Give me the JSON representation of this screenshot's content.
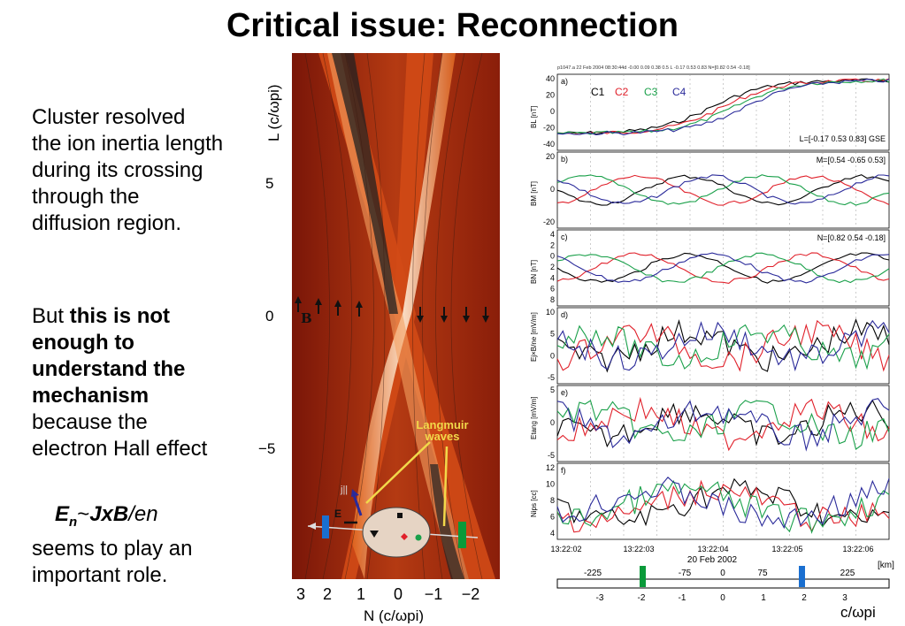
{
  "title": "Critical issue: Reconnection",
  "left_text": {
    "para1": [
      "Cluster resolved",
      "the ion inertia length",
      "during its crossing",
      "through the",
      "diffusion region."
    ],
    "para2_intro": "But ",
    "para2_bold": [
      "this is not",
      "enough to",
      "understand the",
      "mechanism"
    ],
    "para2_rest": [
      "because the",
      "electron Hall effect"
    ],
    "formula_E": "E",
    "formula_sub": "n",
    "formula_mid": "~",
    "formula_jxb": "JxB",
    "formula_tail": "/en",
    "para3": [
      "seems to play an",
      "important role."
    ]
  },
  "sim": {
    "y_axis_label": "L (c/ωpi)",
    "y_ticks": [
      "5",
      "0",
      "−5"
    ],
    "x_axis_label": "N (c/ωpi)",
    "x_ticks": [
      "3",
      "2",
      "1",
      "0",
      "−1",
      "−2"
    ],
    "b_label": "B",
    "e_label": "E",
    "j_label": "j||",
    "langmuir_line1": "Langmuir",
    "langmuir_line2": "waves"
  },
  "data_panels": {
    "header": "p1047.a  22 Feb 2004 08:30:44d -0.00  0.09  0.38 0.5 L -0.17  0.53  0.83 N=[0.82  0.54 -0.18]",
    "legend": [
      "C1",
      "C2",
      "C3",
      "C4"
    ],
    "legend_colors": [
      "#000000",
      "#e0202a",
      "#1aa04a",
      "#2a2a9a"
    ],
    "panels": [
      {
        "letter": "a)",
        "ylabel": "BL [nT]",
        "ticks": [
          "40",
          "20",
          "0",
          "-20",
          "-40"
        ],
        "note": "L=[-0.17  0.53  0.83] GSE"
      },
      {
        "letter": "b)",
        "ylabel": "BM [nT]",
        "ticks": [
          "20",
          "0",
          "-20"
        ],
        "note": "M=[0.54 -0.65  0.53]"
      },
      {
        "letter": "c)",
        "ylabel": "BN [nT]",
        "ticks": [
          "4",
          "2",
          "0",
          "2",
          "4",
          "6",
          "8"
        ],
        "note": "N=[0.82  0.54 -0.18]"
      },
      {
        "letter": "d)",
        "ylabel": "Ej×B/ne [mV/m]",
        "ticks": [
          "10",
          "5",
          "0",
          "-5"
        ],
        "note": ""
      },
      {
        "letter": "e)",
        "ylabel": "Etang [mV/m]",
        "ticks": [
          "5",
          "0",
          "-5"
        ],
        "note": ""
      },
      {
        "letter": "f)",
        "ylabel": "Nips [cc]",
        "ticks": [
          "12",
          "10",
          "8",
          "6",
          "4"
        ],
        "note": ""
      }
    ],
    "time_ticks": [
      "13:22:02",
      "13:22:03",
      "13:22:04",
      "13:22:05",
      "13:22:06"
    ],
    "date": "20 Feb 2002",
    "km_ticks": [
      "-225",
      "-75",
      "0",
      "75",
      "225"
    ],
    "km_unit": "[km]",
    "cw_ticks": [
      "-3",
      "-2",
      "-1",
      "0",
      "1",
      "2",
      "3"
    ],
    "cw_unit": "c/ωpi"
  },
  "colors": {
    "c1": "#000000",
    "c2": "#e0202a",
    "c3": "#1aa04a",
    "c4": "#2a2a9a",
    "green_marker": "#0a9a3a",
    "blue_marker": "#1a6fd0",
    "wave_label": "#f2d84a"
  }
}
